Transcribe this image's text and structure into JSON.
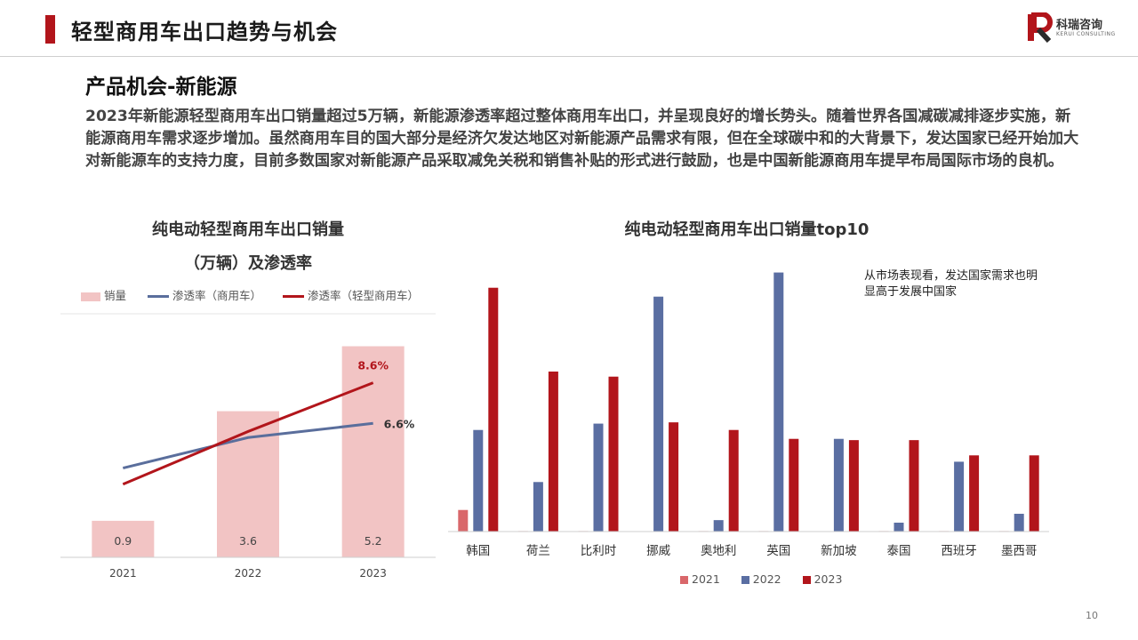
{
  "header": {
    "title": "轻型商用车出口趋势与机会"
  },
  "logo": {
    "name": "科瑞咨询",
    "english": "KERUI CONSULTING"
  },
  "section": {
    "title": "产品机会-新能源",
    "body": "2023年新能源轻型商用车出口销量超过5万辆，新能源渗透率超过整体商用车出口，并呈现良好的增长势头。随着世界各国减碳减排逐步实施，新能源商用车需求逐步增加。虽然商用车目的国大部分是经济欠发达地区对新能源产品需求有限，但在全球碳中和的大背景下，发达国家已经开始加大对新能源车的支持力度，目前多数国家对新能源产品采取减免关税和销售补贴的形式进行鼓励，也是中国新能源商用车提早布局国际市场的良机。"
  },
  "left_chart": {
    "title_line1": "纯电动轻型商用车出口销量",
    "title_line2": "（万辆）及渗透率"
  },
  "right_chart": {
    "title": "纯电动轻型商用车出口销量top10",
    "note": "从市场表现看，发达国家需求也明显高于发展中国家"
  },
  "page_number": "10",
  "colors": {
    "accent": "#b2151b",
    "bar_pink": "#f2c4c4",
    "line_blue": "#5a6e9c",
    "line_red": "#b2151b",
    "c2021": "#d9676a",
    "c2022": "#5a6ea2",
    "c2023": "#b2151b"
  },
  "chart_data": [
    {
      "type": "bar+line",
      "categories": [
        "2021",
        "2022",
        "2023"
      ],
      "series": [
        {
          "name": "销量",
          "type": "bar",
          "values": [
            0.9,
            3.6,
            5.2
          ],
          "labels": [
            "0.9",
            "3.6",
            "5.2"
          ]
        },
        {
          "name": "渗透率（商用车）",
          "type": "line",
          "values": [
            4.4,
            5.9,
            6.6
          ],
          "end_label": "6.6%"
        },
        {
          "name": "渗透率（轻型商用车）",
          "type": "line",
          "values": [
            3.6,
            6.2,
            8.6
          ],
          "end_label": "8.6%"
        }
      ],
      "bar_ylim": [
        0,
        6
      ],
      "line_ylim": [
        0,
        12
      ]
    },
    {
      "type": "bar",
      "categories": [
        "韩国",
        "荷兰",
        "比利时",
        "挪威",
        "奥地利",
        "英国",
        "新加坡",
        "泰国",
        "西班牙",
        "墨西哥"
      ],
      "series": [
        {
          "name": "2021",
          "values": [
            0.85,
            0.02,
            0.02,
            0,
            0.02,
            0.02,
            0,
            0.02,
            0.02,
            0.02
          ]
        },
        {
          "name": "2022",
          "values": [
            4.0,
            1.95,
            4.25,
            9.25,
            0.45,
            10.2,
            3.65,
            0.35,
            2.75,
            0.7
          ]
        },
        {
          "name": "2023",
          "values": [
            9.6,
            6.3,
            6.1,
            4.3,
            4.0,
            3.65,
            3.6,
            3.6,
            3.0,
            3.0
          ]
        }
      ],
      "ylim": [
        0,
        10.5
      ]
    }
  ]
}
